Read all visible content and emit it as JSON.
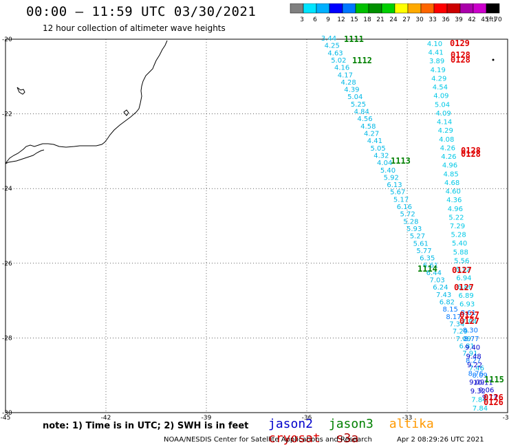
{
  "header": {
    "title": "00:00 – 11:59 UTC 03/30/2021",
    "subtitle": "12 hour collection of altimeter wave heights"
  },
  "colorbar": {
    "unit": "(ft)",
    "labels": [
      "3",
      "6",
      "9",
      "12",
      "15",
      "18",
      "21",
      "24",
      "27",
      "30",
      "33",
      "36",
      "39",
      "42",
      "45",
      "70"
    ],
    "colors": [
      "#808080",
      "#00e5ff",
      "#00b0ff",
      "#0000ff",
      "#0077ff",
      "#00c000",
      "#009000",
      "#00d000",
      "#ffff00",
      "#ffaa00",
      "#ff6600",
      "#ff0000",
      "#cc0000",
      "#aa00aa",
      "#cc00cc",
      "#000000"
    ]
  },
  "axes": {
    "lat_labels": [
      "-20",
      "-22",
      "-24",
      "-26",
      "-28",
      "-30"
    ],
    "lon_labels": [
      "-45",
      "-42",
      "-39",
      "-36",
      "-33",
      "-30"
    ]
  },
  "passes": [
    {
      "label": "1111",
      "color": "#008000"
    },
    {
      "label": "1112",
      "color": "#008000"
    },
    {
      "label": "1113",
      "color": "#008000"
    },
    {
      "label": "1114",
      "color": "#008000"
    },
    {
      "label": "1115",
      "color": "#008000"
    },
    {
      "label": "0129",
      "color": "#e00000"
    },
    {
      "label": "0128",
      "color": "#e00000"
    },
    {
      "label": "0128",
      "color": "#e00000"
    },
    {
      "label": "0128",
      "color": "#e00000"
    },
    {
      "label": "0128",
      "color": "#e00000"
    },
    {
      "label": "0127",
      "color": "#e00000"
    },
    {
      "label": "0127",
      "color": "#e00000"
    },
    {
      "label": "0127",
      "color": "#e00000"
    },
    {
      "label": "0127",
      "color": "#e00000"
    },
    {
      "label": "0126",
      "color": "#e00000"
    },
    {
      "label": "0126",
      "color": "#e00000"
    }
  ],
  "track_a": [
    "3.44",
    "4.25",
    "4.63",
    "5.02",
    "4.16",
    "4.17",
    "4.28",
    "4.39",
    "5.04",
    "5.25",
    "4.84",
    "4.56",
    "4.58",
    "4.27",
    "4.41",
    "5.05",
    "4.32",
    "4.04",
    "5.40",
    "5.92",
    "6.13",
    "5.67",
    "5.17",
    "6.16",
    "5.72",
    "5.28",
    "5.93",
    "5.27",
    "5.61",
    "5.77",
    "6.35",
    "6.61",
    "6.44",
    "7.03",
    "6.24",
    "7.43",
    "6.82",
    "8.15",
    "8.17",
    "7.34",
    "7.29",
    "7.09",
    "6.81",
    "7.91",
    "8.27",
    "7.46",
    "8.09",
    "10.11",
    "9.06",
    "9.73"
  ],
  "track_b": [
    "4.10",
    "4.41",
    "3.89",
    "4.19",
    "4.29",
    "4.54",
    "4.09",
    "5.04",
    "4.09",
    "4.14",
    "4.29",
    "4.08",
    "4.26",
    "4.26",
    "4.96",
    "4.85",
    "4.68",
    "4.60",
    "4.36",
    "4.96",
    "5.22",
    "7.29",
    "5.28",
    "5.40",
    "5.88",
    "5.56",
    "6.12",
    "6.94",
    "6.86",
    "6.89",
    "6.93",
    "8.61",
    "7.84",
    "8.30",
    "8.77",
    "9.40",
    "9.48",
    "9.22",
    "8.76",
    "9.09",
    "9.32",
    "7.84",
    "7.84"
  ],
  "notes": {
    "note": "note: 1) Time is in UTC; 2) SWH is in feet",
    "credit": "NOAA/NESDIS Center for Satellite Applications and Research",
    "timestamp": "Apr  2 08:29:26 UTC 2021"
  },
  "legend": [
    {
      "label": "jason2",
      "color": "#0000cc"
    },
    {
      "label": "jason3",
      "color": "#008000"
    },
    {
      "label": "altika",
      "color": "#ff9900"
    },
    {
      "label": "cryosat",
      "color": "#e00000"
    },
    {
      "label": "s3a",
      "color": "#b00000"
    }
  ]
}
